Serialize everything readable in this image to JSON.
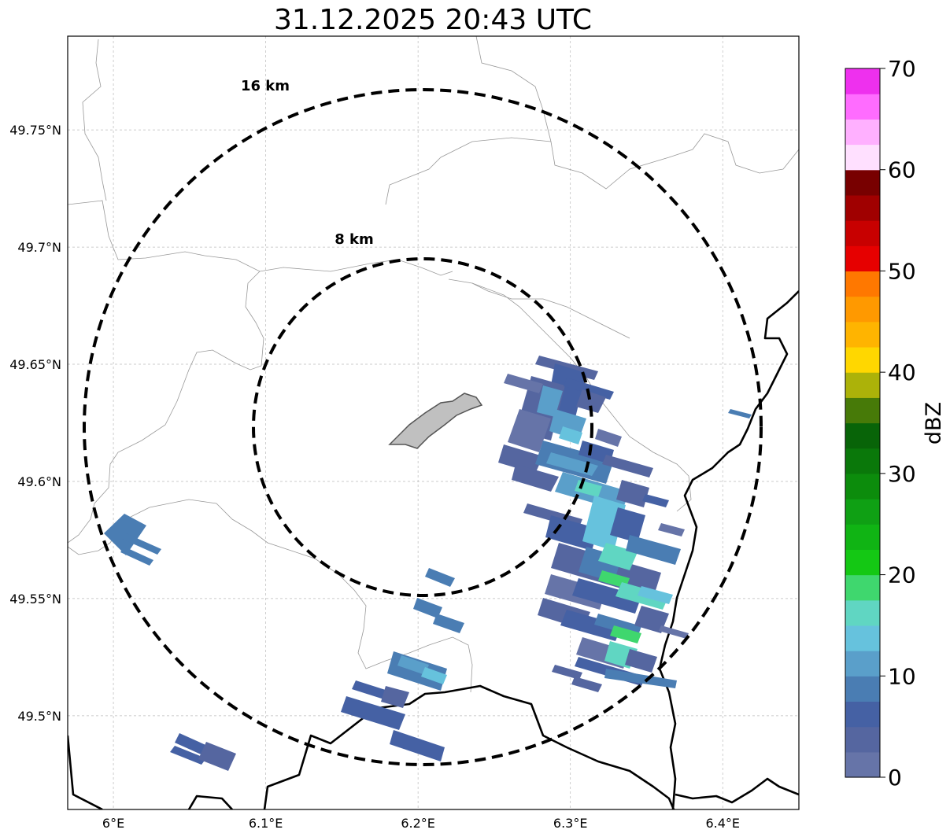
{
  "title": "31.12.2025 20:43 UTC",
  "range_labels": [
    "16 km",
    "8 km"
  ],
  "map_extent": {
    "lon_min": 5.97,
    "lon_max": 6.45,
    "lat_min": 49.46,
    "lat_max": 49.79
  },
  "radar_center": {
    "lon": 6.203,
    "lat": 49.623
  },
  "range_rings_km": [
    8,
    16
  ],
  "lon_ticks": [
    {
      "value": 6.0,
      "label": "6°E"
    },
    {
      "value": 6.1,
      "label": "6.1°E"
    },
    {
      "value": 6.2,
      "label": "6.2°E"
    },
    {
      "value": 6.3,
      "label": "6.3°E"
    },
    {
      "value": 6.4,
      "label": "6.4°E"
    }
  ],
  "lat_ticks": [
    {
      "value": 49.75,
      "label": "49.75°N"
    },
    {
      "value": 49.7,
      "label": "49.7°N"
    },
    {
      "value": 49.65,
      "label": "49.65°N"
    },
    {
      "value": 49.6,
      "label": "49.6°N"
    },
    {
      "value": 49.55,
      "label": "49.55°N"
    },
    {
      "value": 49.5,
      "label": "49.5°N"
    }
  ],
  "gridlines": true,
  "colorbar": {
    "label": "dBZ",
    "min": 0,
    "max": 70,
    "step": 2.5,
    "tick_labels": [
      "0",
      "10",
      "20",
      "30",
      "40",
      "50",
      "60",
      "70"
    ],
    "colors": [
      "#6674a8",
      "#5566a0",
      "#4561a4",
      "#4a7db3",
      "#5a9fca",
      "#66c2dd",
      "#60d6c2",
      "#3fd76e",
      "#14c814",
      "#10b414",
      "#0fa014",
      "#0c8c0c",
      "#0a780a",
      "#086408",
      "#477a08",
      "#acb209",
      "#ffd700",
      "#ffb400",
      "#ff9900",
      "#ff7800",
      "#e60000",
      "#c80000",
      "#a00000",
      "#780000",
      "#ffe0ff",
      "#ffb0ff",
      "#ff6cff",
      "#ee30ee"
    ]
  },
  "city_area_color": "#c0c0c0",
  "colors": {
    "border": "#000000",
    "admin": "#999999",
    "grid": "#bbbbbb",
    "ring": "#000000"
  }
}
